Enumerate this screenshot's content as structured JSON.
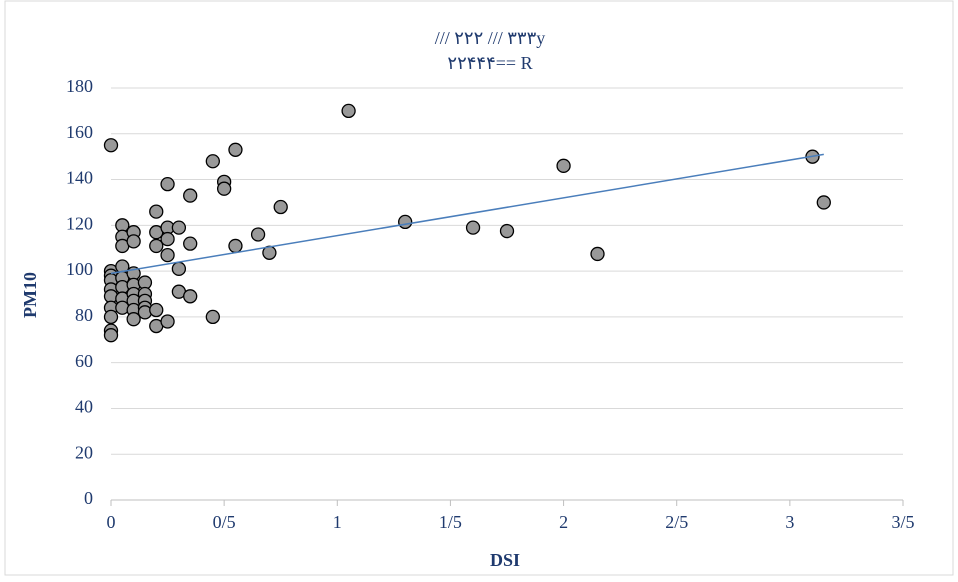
{
  "chart_data": {
    "type": "scatter",
    "title_lines": [
      "/// ۲۲۲     /// ۳۳۳y",
      "۲۲۴۴۴== R"
    ],
    "x_label": "DSI",
    "y_label": "PM10",
    "x": [
      0,
      0,
      0,
      0,
      0,
      0,
      0,
      0,
      0,
      0,
      0.05,
      0.05,
      0.05,
      0.05,
      0.05,
      0.05,
      0.05,
      0.05,
      0.1,
      0.1,
      0.1,
      0.1,
      0.1,
      0.1,
      0.1,
      0.1,
      0.15,
      0.15,
      0.15,
      0.15,
      0.15,
      0.2,
      0.2,
      0.2,
      0.2,
      0.2,
      0.25,
      0.25,
      0.25,
      0.25,
      0.25,
      0.3,
      0.3,
      0.3,
      0.35,
      0.35,
      0.35,
      0.45,
      0.45,
      0.5,
      0.5,
      0.55,
      0.55,
      0.65,
      0.7,
      0.75,
      1.05,
      1.3,
      1.6,
      1.75,
      2.0,
      2.15,
      3.1,
      3.15
    ],
    "y": [
      155,
      100,
      98,
      96,
      92,
      89,
      84,
      80,
      74,
      72,
      120,
      115,
      111,
      102,
      97,
      93,
      88,
      84,
      117,
      113,
      99,
      94,
      90,
      87,
      83,
      79,
      95,
      90,
      87,
      84,
      82,
      126,
      117,
      111,
      83,
      76,
      138,
      119,
      114,
      107,
      78,
      119,
      101,
      91,
      133,
      112,
      89,
      148,
      80,
      139,
      136,
      153,
      111,
      116,
      108,
      128,
      170,
      121.5,
      119,
      117.5,
      146,
      107.5,
      150,
      130
    ],
    "color": "#999999",
    "trendline": {
      "x": [
        0,
        3.15
      ],
      "y": [
        99,
        151
      ],
      "color": "#4a7ebb"
    },
    "xlim": [
      0,
      3.5
    ],
    "xticks": [
      0,
      {
        "value": 0.5,
        "label": "0/5"
      },
      1,
      {
        "value": 1.5,
        "label": "1/5"
      },
      2,
      {
        "value": 2.5,
        "label": "2/5"
      },
      3,
      {
        "value": 3.5,
        "label": "3/5"
      }
    ],
    "ylim": [
      0,
      180
    ],
    "yticks": [
      0,
      20,
      40,
      60,
      80,
      100,
      120,
      140,
      160,
      180
    ],
    "grid": true
  }
}
